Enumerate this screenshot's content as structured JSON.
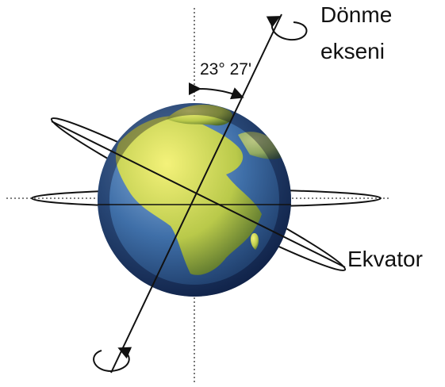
{
  "labels": {
    "axis": [
      "Dönme",
      "ekseni"
    ],
    "angle": "23° 27'",
    "equator": "Ekvator"
  }
}
